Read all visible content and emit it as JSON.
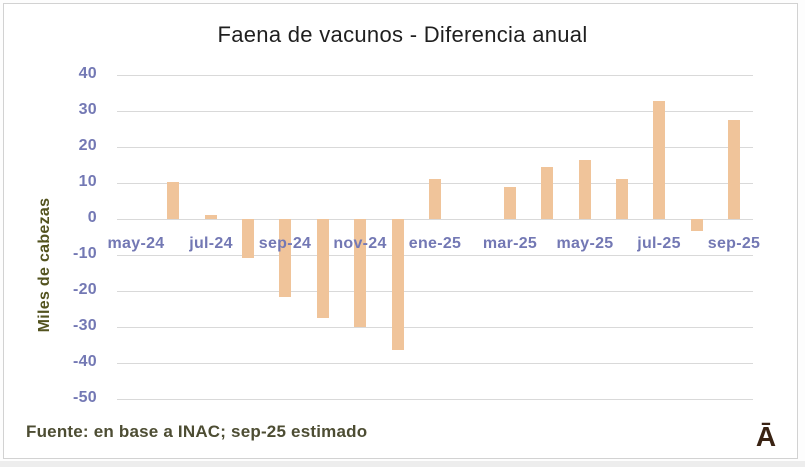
{
  "title": "Faena de vacunos - Diferencia anual",
  "y_axis_title": "Miles de cabezas",
  "footer": {
    "source_note": "Fuente: en base a INAC; sep-25 estimado",
    "logo_text": "Ā"
  },
  "colors": {
    "bar": "#f0c49a",
    "gridline": "#d9d9d9",
    "tick_label": "#7378b4",
    "axis_title": "#53531f",
    "title_text": "#1f1f1f",
    "source_text": "#4d4d33",
    "logo": "#3a2313",
    "card_border": "#d2d2d2"
  },
  "chart_data": {
    "type": "bar",
    "title": "Faena de vacunos - Diferencia anual",
    "ylabel": "Miles de cabezas",
    "xlabel": "",
    "categories": [
      "may-24",
      "jun-24",
      "jul-24",
      "ago-24",
      "sep-24",
      "oct-24",
      "nov-24",
      "dic-24",
      "ene-25",
      "feb-25",
      "mar-25",
      "abr-25",
      "may-25",
      "jun-25",
      "jul-25",
      "ago-25",
      "sep-25"
    ],
    "values": [
      0,
      10.4,
      1.0,
      -10.9,
      -21.8,
      -27.5,
      -30.0,
      -36.3,
      11.2,
      0,
      9.0,
      14.5,
      16.3,
      11.2,
      32.7,
      -3.3,
      27.6
    ],
    "x_tick_labels": [
      "may-24",
      "jul-24",
      "sep-24",
      "nov-24",
      "ene-25",
      "mar-25",
      "may-25",
      "jul-25",
      "sep-25"
    ],
    "x_tick_every": 2,
    "y_ticks": [
      40,
      30,
      20,
      10,
      0,
      -10,
      -20,
      -30,
      -40,
      -50
    ],
    "ylim": [
      -50,
      40
    ],
    "grid": true,
    "legend": false
  }
}
